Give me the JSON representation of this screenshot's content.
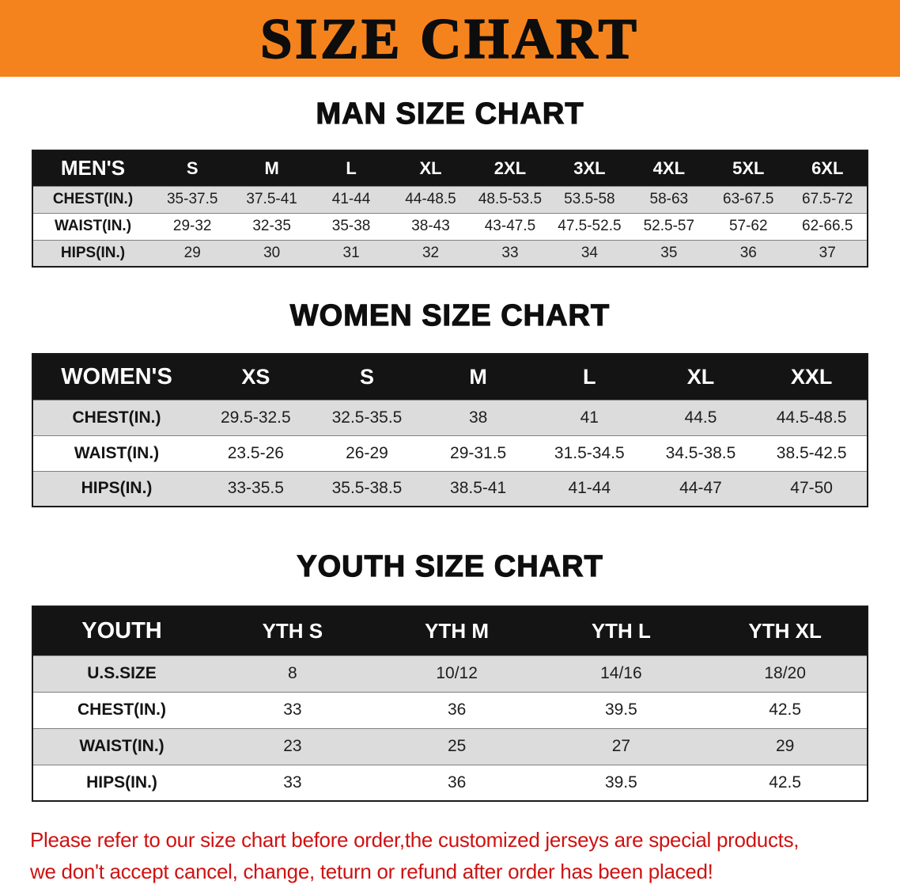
{
  "banner": {
    "title": "SIZE CHART",
    "bg_color": "#f5831d"
  },
  "sections": [
    {
      "id": "men",
      "heading": "MAN SIZE CHART",
      "table": {
        "header_label": "MEN'S",
        "columns": [
          "S",
          "M",
          "L",
          "XL",
          "2XL",
          "3XL",
          "4XL",
          "5XL",
          "6XL"
        ],
        "rows": [
          {
            "label": "CHEST(IN.)",
            "values": [
              "35-37.5",
              "37.5-41",
              "41-44",
              "44-48.5",
              "48.5-53.5",
              "53.5-58",
              "58-63",
              "63-67.5",
              "67.5-72"
            ]
          },
          {
            "label": "WAIST(IN.)",
            "values": [
              "29-32",
              "32-35",
              "35-38",
              "38-43",
              "43-47.5",
              "47.5-52.5",
              "52.5-57",
              "57-62",
              "62-66.5"
            ]
          },
          {
            "label": "HIPS(IN.)",
            "values": [
              "29",
              "30",
              "31",
              "32",
              "33",
              "34",
              "35",
              "36",
              "37"
            ]
          }
        ]
      }
    },
    {
      "id": "women",
      "heading": "WOMEN SIZE CHART",
      "table": {
        "header_label": "WOMEN'S",
        "columns": [
          "XS",
          "S",
          "M",
          "L",
          "XL",
          "XXL"
        ],
        "rows": [
          {
            "label": "CHEST(IN.)",
            "values": [
              "29.5-32.5",
              "32.5-35.5",
              "38",
              "41",
              "44.5",
              "44.5-48.5"
            ]
          },
          {
            "label": "WAIST(IN.)",
            "values": [
              "23.5-26",
              "26-29",
              "29-31.5",
              "31.5-34.5",
              "34.5-38.5",
              "38.5-42.5"
            ]
          },
          {
            "label": "HIPS(IN.)",
            "values": [
              "33-35.5",
              "35.5-38.5",
              "38.5-41",
              "41-44",
              "44-47",
              "47-50"
            ]
          }
        ]
      }
    },
    {
      "id": "youth",
      "heading": "YOUTH SIZE CHART",
      "table": {
        "header_label": "YOUTH",
        "columns": [
          "YTH S",
          "YTH M",
          "YTH L",
          "YTH XL"
        ],
        "rows": [
          {
            "label": "U.S.SIZE",
            "values": [
              "8",
              "10/12",
              "14/16",
              "18/20"
            ]
          },
          {
            "label": "CHEST(IN.)",
            "values": [
              "33",
              "36",
              "39.5",
              "42.5"
            ]
          },
          {
            "label": "WAIST(IN.)",
            "values": [
              "23",
              "25",
              "27",
              "29"
            ]
          },
          {
            "label": "HIPS(IN.)",
            "values": [
              "33",
              "36",
              "39.5",
              "42.5"
            ]
          }
        ]
      }
    }
  ],
  "disclaimer": {
    "line1": "Please refer to our size chart before order,the customized jerseys are special products,",
    "line2": "we don't accept cancel, change, teturn or refund after order has been placed!",
    "color": "#cf1212"
  }
}
